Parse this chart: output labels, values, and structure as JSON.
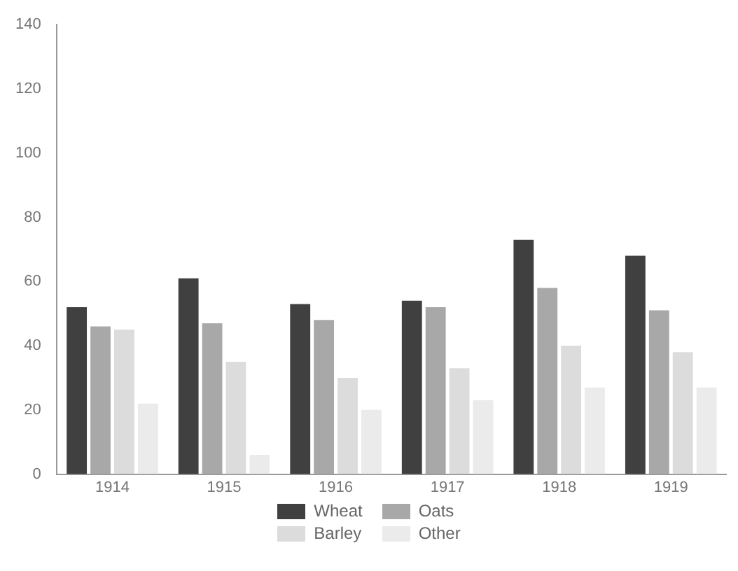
{
  "chart_data": {
    "type": "bar",
    "categories": [
      "1914",
      "1915",
      "1916",
      "1917",
      "1918",
      "1919"
    ],
    "series": [
      {
        "name": "Wheat",
        "color": "#404040",
        "values": [
          52,
          61,
          53,
          54,
          73,
          68
        ]
      },
      {
        "name": "Oats",
        "color": "#a8a8a8",
        "values": [
          46,
          47,
          48,
          52,
          58,
          51
        ]
      },
      {
        "name": "Barley",
        "color": "#dcdcdc",
        "values": [
          45,
          35,
          30,
          33,
          40,
          38
        ]
      },
      {
        "name": "Other",
        "color": "#ebebeb",
        "values": [
          22,
          6,
          20,
          23,
          27,
          27
        ]
      }
    ],
    "ylim": [
      0,
      140
    ],
    "yticks": [
      0,
      20,
      40,
      60,
      80,
      100,
      120,
      140
    ],
    "grid": false,
    "legend": "bottom"
  }
}
